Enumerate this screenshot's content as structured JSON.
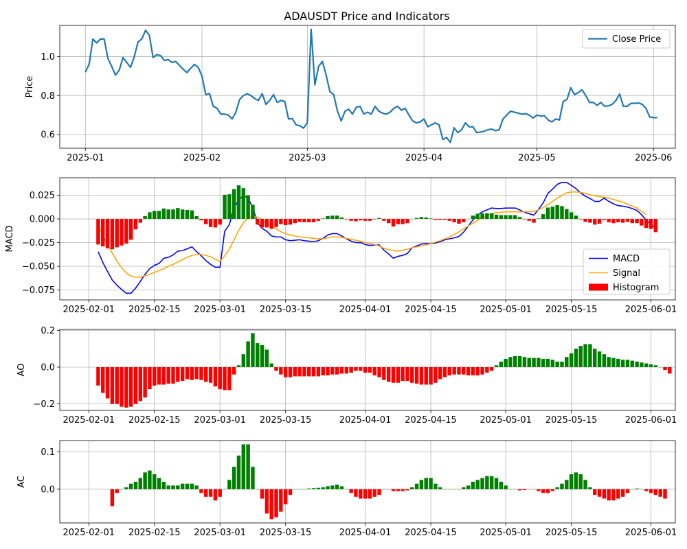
{
  "figure_title": "ADAUSDT Price and Indicators",
  "colors": {
    "price": "#1f77b4",
    "macd": "#0000ff",
    "signal": "#ffa500",
    "pos": "#008000",
    "neg": "#ff0000"
  },
  "chart_data": [
    {
      "id": "price",
      "type": "line",
      "ylabel": "Price",
      "ylim": [
        0.53,
        1.16
      ],
      "xlim": [
        -6.8,
        156.8
      ],
      "xticks": [
        {
          "x": 0,
          "label": "2025-01"
        },
        {
          "x": 31,
          "label": "2025-02"
        },
        {
          "x": 59,
          "label": "2025-03"
        },
        {
          "x": 90,
          "label": "2025-04"
        },
        {
          "x": 120,
          "label": "2025-05"
        },
        {
          "x": 151,
          "label": "2025-06"
        }
      ],
      "yticks": [
        0.6,
        0.8,
        1.0
      ],
      "ytick_labels": [
        "0.6",
        "0.8",
        "1.0"
      ],
      "legend": {
        "position": "upper right",
        "entries": [
          {
            "label": "Close Price",
            "kind": "line"
          }
        ]
      },
      "series": [
        {
          "name": "Close Price",
          "x_start": 0,
          "values": [
            0.92,
            0.96,
            1.09,
            1.07,
            1.09,
            1.09,
            0.99,
            0.95,
            0.905,
            0.93,
            0.995,
            0.97,
            0.945,
            1.0,
            1.075,
            1.09,
            1.135,
            1.11,
            0.995,
            1.01,
            1.005,
            0.98,
            0.985,
            0.97,
            0.975,
            0.955,
            0.935,
            0.918,
            0.94,
            0.96,
            0.945,
            0.9,
            0.805,
            0.81,
            0.745,
            0.735,
            0.705,
            0.705,
            0.7,
            0.68,
            0.715,
            0.78,
            0.8,
            0.81,
            0.8,
            0.785,
            0.775,
            0.81,
            0.755,
            0.775,
            0.805,
            0.765,
            0.775,
            0.77,
            0.68,
            0.682,
            0.65,
            0.645,
            0.633,
            0.66,
            1.14,
            0.855,
            0.95,
            0.975,
            0.905,
            0.82,
            0.805,
            0.72,
            0.67,
            0.72,
            0.73,
            0.705,
            0.74,
            0.745,
            0.705,
            0.715,
            0.705,
            0.745,
            0.72,
            0.71,
            0.705,
            0.715,
            0.735,
            0.745,
            0.725,
            0.735,
            0.7,
            0.67,
            0.66,
            0.665,
            0.68,
            0.64,
            0.65,
            0.66,
            0.65,
            0.575,
            0.585,
            0.56,
            0.635,
            0.61,
            0.625,
            0.66,
            0.64,
            0.64,
            0.61,
            0.613,
            0.617,
            0.625,
            0.628,
            0.62,
            0.625,
            0.68,
            0.7,
            0.72,
            0.715,
            0.71,
            0.705,
            0.707,
            0.7,
            0.685,
            0.7,
            0.695,
            0.697,
            0.675,
            0.665,
            0.68,
            0.675,
            0.77,
            0.78,
            0.84,
            0.805,
            0.815,
            0.83,
            0.8,
            0.765,
            0.765,
            0.75,
            0.765,
            0.745,
            0.747,
            0.755,
            0.775,
            0.808,
            0.745,
            0.745,
            0.76,
            0.76,
            0.762,
            0.755,
            0.735,
            0.69,
            0.687,
            0.687
          ]
        }
      ]
    },
    {
      "id": "macd",
      "type": "line+bar",
      "ylabel": "MACD",
      "ylim": [
        -0.0855,
        0.0435
      ],
      "xlim": [
        -6.2,
        125.2
      ],
      "xticks": [
        {
          "x": 0,
          "label": "2025-02-01"
        },
        {
          "x": 14,
          "label": "2025-02-15"
        },
        {
          "x": 28,
          "label": "2025-03-01"
        },
        {
          "x": 42,
          "label": "2025-03-15"
        },
        {
          "x": 59,
          "label": "2025-04-01"
        },
        {
          "x": 73,
          "label": "2025-04-15"
        },
        {
          "x": 89,
          "label": "2025-05-01"
        },
        {
          "x": 103,
          "label": "2025-05-15"
        },
        {
          "x": 120,
          "label": "2025-06-01"
        }
      ],
      "yticks": [
        -0.075,
        -0.05,
        -0.025,
        0.0,
        0.025
      ],
      "ytick_labels": [
        "−0.075",
        "−0.050",
        "−0.025",
        "0.000",
        "0.025"
      ],
      "legend": {
        "position": "lower right",
        "entries": [
          {
            "label": "MACD",
            "kind": "line"
          },
          {
            "label": "Signal",
            "kind": "line"
          },
          {
            "label": "Histogram",
            "kind": "bar"
          }
        ]
      },
      "series": [
        {
          "name": "MACD",
          "x_start": 2,
          "values": [
            -0.0345,
            -0.046,
            -0.0555,
            -0.0645,
            -0.07,
            -0.0745,
            -0.0785,
            -0.0785,
            -0.073,
            -0.066,
            -0.0585,
            -0.0525,
            -0.049,
            -0.047,
            -0.0415,
            -0.0405,
            -0.038,
            -0.034,
            -0.0335,
            -0.0315,
            -0.0295,
            -0.0345,
            -0.039,
            -0.044,
            -0.048,
            -0.051,
            -0.051,
            -0.013,
            -0.006,
            0.012,
            0.02,
            0.0245,
            0.022,
            0.012,
            -0.004,
            -0.01,
            -0.013,
            -0.018,
            -0.019,
            -0.019,
            -0.022,
            -0.023,
            -0.0225,
            -0.022,
            -0.023,
            -0.0235,
            -0.024,
            -0.023,
            -0.0205,
            -0.017,
            -0.0155,
            -0.0155,
            -0.018,
            -0.021,
            -0.0235,
            -0.025,
            -0.025,
            -0.027,
            -0.028,
            -0.0275,
            -0.0275,
            -0.033,
            -0.037,
            -0.0415,
            -0.0395,
            -0.0385,
            -0.0365,
            -0.0305,
            -0.0285,
            -0.0265,
            -0.026,
            -0.026,
            -0.0255,
            -0.024,
            -0.022,
            -0.021,
            -0.02,
            -0.0185,
            -0.014,
            -0.0075,
            -0.001,
            0.004,
            0.0075,
            0.0095,
            0.0115,
            0.011,
            0.011,
            0.0115,
            0.0115,
            0.0115,
            0.0095,
            0.007,
            0.0055,
            0.004,
            0.01,
            0.017,
            0.027,
            0.0315,
            0.0365,
            0.0385,
            0.0385,
            0.0355,
            0.032,
            0.0275,
            0.024,
            0.0215,
            0.0185,
            0.0185,
            0.022,
            0.0185,
            0.016,
            0.014,
            0.0135,
            0.0125,
            0.011,
            0.009,
            0.0045,
            -0.0015,
            -0.006,
            -0.0095
          ]
        },
        {
          "name": "Signal",
          "x_start": 2,
          "values": [
            -0.0075,
            -0.017,
            -0.027,
            -0.036,
            -0.0445,
            -0.0515,
            -0.057,
            -0.0605,
            -0.0615,
            -0.0615,
            -0.06,
            -0.0585,
            -0.0565,
            -0.0545,
            -0.0525,
            -0.05,
            -0.048,
            -0.0455,
            -0.043,
            -0.0405,
            -0.0385,
            -0.0375,
            -0.0375,
            -0.0385,
            -0.04,
            -0.0425,
            -0.045,
            -0.039,
            -0.032,
            -0.022,
            -0.012,
            -0.004,
            0.001,
            0.003,
            0.002,
            -0.001,
            -0.004,
            -0.0075,
            -0.0105,
            -0.0135,
            -0.0155,
            -0.017,
            -0.018,
            -0.019,
            -0.0195,
            -0.02,
            -0.0205,
            -0.021,
            -0.021,
            -0.02,
            -0.019,
            -0.019,
            -0.0195,
            -0.0205,
            -0.0215,
            -0.0225,
            -0.0235,
            -0.025,
            -0.026,
            -0.027,
            -0.0285,
            -0.031,
            -0.0325,
            -0.0335,
            -0.034,
            -0.033,
            -0.032,
            -0.0305,
            -0.0295,
            -0.0285,
            -0.0275,
            -0.026,
            -0.0245,
            -0.023,
            -0.021,
            -0.019,
            -0.0165,
            -0.0135,
            -0.0105,
            -0.0075,
            -0.0045,
            -0.0015,
            0.0015,
            0.0035,
            0.0055,
            0.0065,
            0.007,
            0.0075,
            0.0075,
            0.0075,
            0.0075,
            0.0075,
            0.0075,
            0.008,
            0.0095,
            0.012,
            0.015,
            0.0185,
            0.022,
            0.025,
            0.0275,
            0.0285,
            0.0285,
            0.028,
            0.027,
            0.0255,
            0.0245,
            0.0235,
            0.023,
            0.022,
            0.0205,
            0.019,
            0.0175,
            0.0155,
            0.0135,
            0.0115,
            0.008,
            0.0045
          ]
        },
        {
          "name": "Histogram",
          "type": "bar",
          "x_start": 2,
          "values": [
            -0.027,
            -0.029,
            -0.031,
            -0.032,
            -0.03,
            -0.028,
            -0.026,
            -0.022,
            -0.011,
            -0.004,
            0.003,
            0.007,
            0.0085,
            0.0085,
            0.011,
            0.01,
            0.01,
            0.0115,
            0.01,
            0.0095,
            0.009,
            0.003,
            -0.0015,
            -0.0055,
            -0.0085,
            -0.009,
            -0.006,
            0.0255,
            0.026,
            0.0315,
            0.0355,
            0.0325,
            0.025,
            0.015,
            -0.006,
            -0.009,
            -0.009,
            -0.0105,
            -0.0085,
            -0.0055,
            -0.0065,
            -0.006,
            -0.0045,
            -0.003,
            -0.0035,
            -0.0035,
            -0.0035,
            -0.002,
            0.0005,
            0.003,
            0.0035,
            0.0035,
            0.0015,
            -0.0005,
            -0.002,
            -0.0025,
            -0.0015,
            -0.002,
            -0.002,
            -0.0005,
            0.001,
            -0.002,
            -0.0045,
            -0.008,
            -0.0055,
            -0.0055,
            -0.0045,
            0.0,
            0.001,
            0.002,
            0.0015,
            0.0005,
            -0.001,
            -0.001,
            -0.001,
            -0.002,
            -0.0035,
            -0.005,
            -0.0035,
            0.0,
            0.0035,
            0.0055,
            0.006,
            0.006,
            0.006,
            0.0045,
            0.004,
            0.004,
            0.004,
            0.004,
            0.002,
            -0.0005,
            -0.002,
            -0.004,
            0.0005,
            0.005,
            0.012,
            0.013,
            0.0145,
            0.0135,
            0.0105,
            0.007,
            0.0035,
            -0.0005,
            -0.003,
            -0.004,
            -0.006,
            -0.005,
            -0.001,
            -0.0035,
            -0.0045,
            -0.0035,
            -0.004,
            -0.003,
            -0.0045,
            -0.0045,
            -0.007,
            -0.0095,
            -0.0105,
            -0.014
          ]
        }
      ]
    },
    {
      "id": "ao",
      "type": "bar",
      "ylabel": "AO",
      "ylim": [
        -0.235,
        0.205
      ],
      "xlim": [
        -6.2,
        125.2
      ],
      "xticks": [
        {
          "x": 0,
          "label": "2025-02-01"
        },
        {
          "x": 14,
          "label": "2025-02-15"
        },
        {
          "x": 28,
          "label": "2025-03-01"
        },
        {
          "x": 42,
          "label": "2025-03-15"
        },
        {
          "x": 59,
          "label": "2025-04-01"
        },
        {
          "x": 73,
          "label": "2025-04-15"
        },
        {
          "x": 89,
          "label": "2025-05-01"
        },
        {
          "x": 103,
          "label": "2025-05-15"
        },
        {
          "x": 120,
          "label": "2025-06-01"
        }
      ],
      "yticks": [
        -0.2,
        0.0,
        0.2
      ],
      "ytick_labels": [
        "−0.2",
        "0.0",
        "0.2"
      ],
      "series": [
        {
          "name": "AO",
          "x_start": 2,
          "values": [
            -0.1,
            -0.14,
            -0.17,
            -0.2,
            -0.2,
            -0.215,
            -0.22,
            -0.215,
            -0.2,
            -0.185,
            -0.165,
            -0.12,
            -0.1,
            -0.095,
            -0.095,
            -0.09,
            -0.09,
            -0.08,
            -0.075,
            -0.065,
            -0.07,
            -0.065,
            -0.07,
            -0.08,
            -0.085,
            -0.105,
            -0.12,
            -0.125,
            -0.125,
            -0.04,
            0.01,
            0.07,
            0.14,
            0.185,
            0.13,
            0.12,
            0.095,
            0.02,
            -0.02,
            -0.04,
            -0.055,
            -0.055,
            -0.05,
            -0.05,
            -0.05,
            -0.05,
            -0.05,
            -0.05,
            -0.045,
            -0.045,
            -0.04,
            -0.04,
            -0.035,
            -0.035,
            -0.03,
            -0.02,
            -0.02,
            -0.03,
            -0.03,
            -0.045,
            -0.055,
            -0.07,
            -0.08,
            -0.085,
            -0.085,
            -0.075,
            -0.075,
            -0.085,
            -0.09,
            -0.095,
            -0.095,
            -0.095,
            -0.085,
            -0.065,
            -0.055,
            -0.045,
            -0.04,
            -0.04,
            -0.04,
            -0.045,
            -0.045,
            -0.045,
            -0.04,
            -0.03,
            -0.02,
            0.01,
            0.03,
            0.045,
            0.055,
            0.06,
            0.06,
            0.055,
            0.05,
            0.05,
            0.05,
            0.045,
            0.045,
            0.04,
            0.03,
            0.03,
            0.055,
            0.075,
            0.1,
            0.115,
            0.125,
            0.125,
            0.1,
            0.085,
            0.07,
            0.055,
            0.05,
            0.045,
            0.04,
            0.04,
            0.035,
            0.03,
            0.025,
            0.02,
            0.015,
            0.01,
            0.0,
            -0.015,
            -0.035
          ]
        }
      ]
    },
    {
      "id": "ac",
      "type": "bar",
      "ylabel": "AC",
      "ylim": [
        -0.09,
        0.13
      ],
      "xlim": [
        -6.2,
        125.2
      ],
      "xticks": [
        {
          "x": 0,
          "label": "2025-02-01"
        },
        {
          "x": 14,
          "label": "2025-02-15"
        },
        {
          "x": 28,
          "label": "2025-03-01"
        },
        {
          "x": 42,
          "label": "2025-03-15"
        },
        {
          "x": 59,
          "label": "2025-04-01"
        },
        {
          "x": 73,
          "label": "2025-04-15"
        },
        {
          "x": 89,
          "label": "2025-05-01"
        },
        {
          "x": 103,
          "label": "2025-05-15"
        },
        {
          "x": 120,
          "label": "2025-06-01"
        }
      ],
      "yticks": [
        0.0,
        0.1
      ],
      "ytick_labels": [
        "0.0",
        "0.1"
      ],
      "series": [
        {
          "name": "AC",
          "x_start": 5,
          "values": [
            -0.045,
            -0.01,
            0.0,
            0.005,
            0.015,
            0.02,
            0.03,
            0.045,
            0.05,
            0.04,
            0.03,
            0.02,
            0.01,
            0.01,
            0.01,
            0.015,
            0.015,
            0.015,
            0.01,
            -0.01,
            -0.02,
            -0.02,
            -0.03,
            -0.02,
            0.0,
            0.025,
            0.06,
            0.09,
            0.12,
            0.12,
            0.06,
            0.0,
            -0.025,
            -0.065,
            -0.08,
            -0.075,
            -0.06,
            -0.04,
            -0.015,
            0.0,
            0.0,
            0.0,
            0.002,
            0.003,
            0.004,
            0.005,
            0.008,
            0.01,
            0.012,
            0.008,
            0.0,
            -0.01,
            -0.02,
            -0.025,
            -0.025,
            -0.025,
            -0.02,
            -0.015,
            0.0,
            0.0,
            -0.005,
            -0.005,
            -0.005,
            -0.003,
            0.005,
            0.015,
            0.025,
            0.03,
            0.03,
            0.015,
            0.005,
            0.0,
            0.0,
            0.0,
            0.0,
            0.005,
            0.01,
            0.02,
            0.025,
            0.03,
            0.035,
            0.035,
            0.03,
            0.02,
            0.01,
            0.0,
            0.0,
            -0.003,
            -0.002,
            0.0,
            0.0,
            -0.005,
            -0.01,
            -0.01,
            -0.005,
            0.005,
            0.015,
            0.025,
            0.04,
            0.045,
            0.04,
            0.025,
            0.005,
            -0.015,
            -0.02,
            -0.025,
            -0.03,
            -0.03,
            -0.025,
            -0.02,
            -0.01,
            0.0,
            0.002,
            0.0,
            -0.005,
            -0.01,
            -0.015,
            -0.02,
            -0.025
          ]
        }
      ]
    }
  ]
}
